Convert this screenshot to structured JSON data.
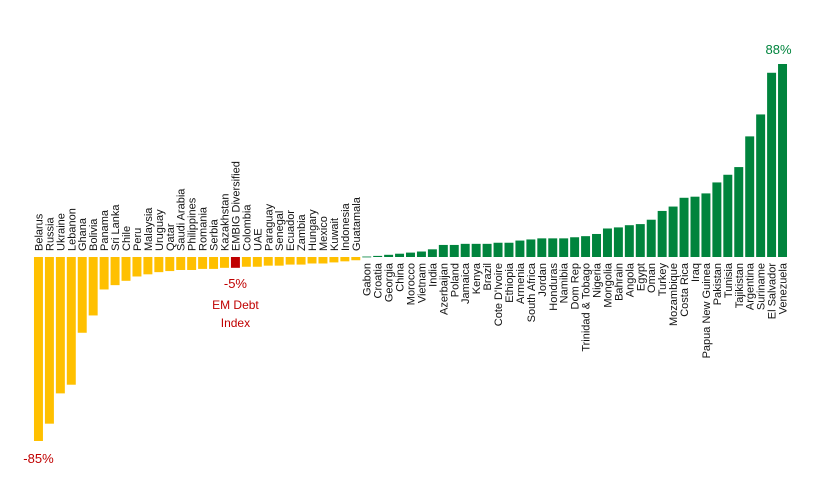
{
  "chart_data": {
    "type": "bar",
    "categories": [
      "Belarus",
      "Russia",
      "Ukraine",
      "Lebanon",
      "Ghana",
      "Bolivia",
      "Panama",
      "Sri Lanka",
      "Chile",
      "Peru",
      "Malaysia",
      "Uruguay",
      "Qatar",
      "Saudi Arabia",
      "Philippines",
      "Romania",
      "Serbia",
      "Kazakhstan",
      "EMBIG Diversified",
      "Colombia",
      "UAE",
      "Paraguay",
      "Senegal",
      "Ecuador",
      "Zambia",
      "Hungary",
      "Mexico",
      "Kuwait",
      "Indonesia",
      "Guatamala",
      "Gabon",
      "Croatia",
      "Georgia",
      "China",
      "Morocco",
      "Vietnam",
      "India",
      "Azerbaijan",
      "Poland",
      "Jamaica",
      "Kenya",
      "Brazil",
      "Cote D'Ivoire",
      "Ethiopia",
      "Armenia",
      "South Africa",
      "Jordan",
      "Honduras",
      "Namibia",
      "Dom Rep",
      "Trinidad & Tobago",
      "Nigeria",
      "Mongolia",
      "Bahrain",
      "Angola",
      "Egypt",
      "Oman",
      "Turkey",
      "Mozambique",
      "Costa Rica",
      "Iraq",
      "Papua New Guinea",
      "Pakistan",
      "Tunisia",
      "Tajikistan",
      "Argentina",
      "Suriname",
      "El Salvador",
      "Venezuela"
    ],
    "values": [
      -85,
      -77,
      -63,
      -59,
      -35,
      -27,
      -15,
      -13,
      -11,
      -9,
      -8,
      -7,
      -6.5,
      -6,
      -6,
      -5.5,
      -5.5,
      -5,
      -5,
      -4.5,
      -4.5,
      -4,
      -4,
      -3.5,
      -3.5,
      -3,
      -3,
      -2.5,
      -2,
      -1.5,
      0.2,
      0.5,
      1,
      1.5,
      2,
      2.5,
      3.5,
      5.5,
      5.5,
      6,
      6,
      6,
      6.5,
      6.5,
      7.5,
      8,
      8.5,
      8.5,
      8.5,
      9,
      9.5,
      10.5,
      13,
      13.5,
      14.5,
      15,
      17,
      21,
      23,
      27,
      27.5,
      29,
      34,
      37.5,
      41,
      55,
      65,
      84,
      88
    ],
    "highlight_category": "EMBIG Diversified",
    "colors": {
      "negative": "#FFC000",
      "positive": "#00843D",
      "highlight": "#C00000",
      "min_label": "#C00000",
      "max_label": "#00843D"
    },
    "ylim": [
      -85,
      88
    ],
    "grid": false,
    "legend": "none",
    "annotations": {
      "min_value": "-85%",
      "max_value": "88%",
      "highlight_value": "-5%",
      "highlight_name_line1": "EM Debt",
      "highlight_name_line2": "Index"
    }
  }
}
